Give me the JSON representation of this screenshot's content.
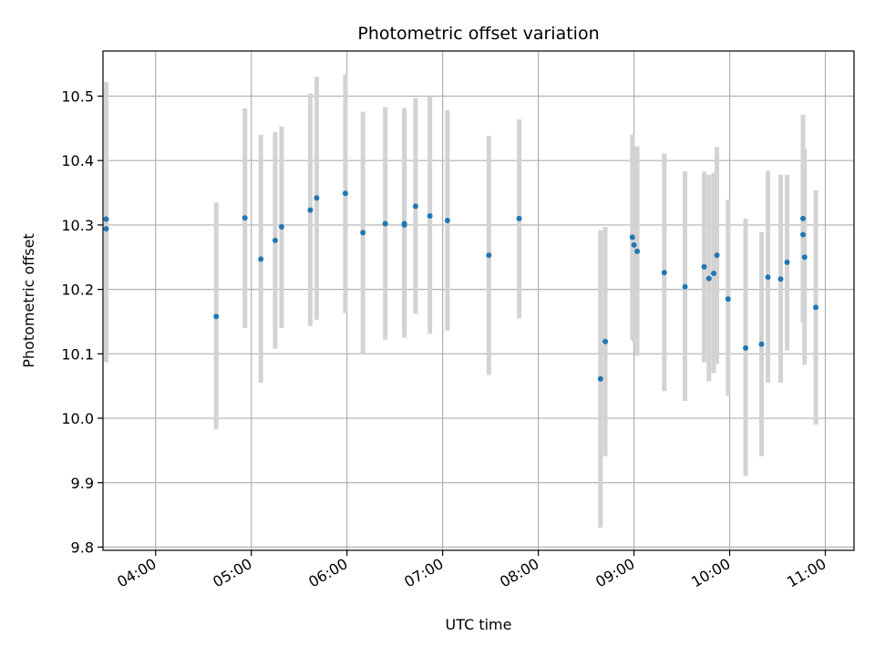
{
  "chart_data": {
    "type": "scatter",
    "title": "Photometric offset variation",
    "xlabel": "UTC time",
    "ylabel": "Photometric offset",
    "xlim": [
      "03:27",
      "11:18"
    ],
    "ylim": [
      9.795,
      10.57
    ],
    "x_ticks": [
      "04:00",
      "05:00",
      "06:00",
      "07:00",
      "08:00",
      "09:00",
      "10:00",
      "11:00"
    ],
    "y_ticks": [
      "9.8",
      "9.9",
      "10.0",
      "10.1",
      "10.2",
      "10.3",
      "10.4",
      "10.5"
    ],
    "grid": true,
    "colors": {
      "marker": "#1f77b4",
      "errorbar": "#d3d3d3",
      "grid": "#b0b0b0"
    },
    "points": [
      {
        "t": "03:29",
        "y": 10.309,
        "lo": 10.095,
        "hi": 10.522
      },
      {
        "t": "03:29",
        "y": 10.294,
        "lo": 10.087,
        "hi": 10.5
      },
      {
        "t": "04:38",
        "y": 10.158,
        "lo": 9.983,
        "hi": 10.335
      },
      {
        "t": "04:56",
        "y": 10.311,
        "lo": 10.14,
        "hi": 10.481
      },
      {
        "t": "05:06",
        "y": 10.247,
        "lo": 10.055,
        "hi": 10.44
      },
      {
        "t": "05:15",
        "y": 10.276,
        "lo": 10.108,
        "hi": 10.444
      },
      {
        "t": "05:19",
        "y": 10.297,
        "lo": 10.14,
        "hi": 10.453
      },
      {
        "t": "05:37",
        "y": 10.323,
        "lo": 10.143,
        "hi": 10.504
      },
      {
        "t": "05:41",
        "y": 10.342,
        "lo": 10.153,
        "hi": 10.53
      },
      {
        "t": "05:59",
        "y": 10.349,
        "lo": 10.163,
        "hi": 10.534
      },
      {
        "t": "06:10",
        "y": 10.288,
        "lo": 10.1,
        "hi": 10.476
      },
      {
        "t": "06:24",
        "y": 10.302,
        "lo": 10.122,
        "hi": 10.483
      },
      {
        "t": "06:36",
        "y": 10.3,
        "lo": 10.125,
        "hi": 10.482
      },
      {
        "t": "06:36",
        "y": 10.302,
        "lo": 10.13,
        "hi": 10.475
      },
      {
        "t": "06:43",
        "y": 10.329,
        "lo": 10.162,
        "hi": 10.497
      },
      {
        "t": "06:52",
        "y": 10.314,
        "lo": 10.131,
        "hi": 10.5
      },
      {
        "t": "07:03",
        "y": 10.307,
        "lo": 10.136,
        "hi": 10.478
      },
      {
        "t": "07:29",
        "y": 10.253,
        "lo": 10.067,
        "hi": 10.438
      },
      {
        "t": "07:48",
        "y": 10.31,
        "lo": 10.155,
        "hi": 10.464
      },
      {
        "t": "08:39",
        "y": 10.061,
        "lo": 9.83,
        "hi": 10.292
      },
      {
        "t": "08:42",
        "y": 10.119,
        "lo": 9.941,
        "hi": 10.297
      },
      {
        "t": "08:59",
        "y": 10.281,
        "lo": 10.122,
        "hi": 10.44
      },
      {
        "t": "09:00",
        "y": 10.269,
        "lo": 10.118,
        "hi": 10.42
      },
      {
        "t": "09:02",
        "y": 10.259,
        "lo": 10.097,
        "hi": 10.422
      },
      {
        "t": "09:19",
        "y": 10.226,
        "lo": 10.042,
        "hi": 10.411
      },
      {
        "t": "09:32",
        "y": 10.204,
        "lo": 10.027,
        "hi": 10.383
      },
      {
        "t": "09:44",
        "y": 10.235,
        "lo": 10.087,
        "hi": 10.383
      },
      {
        "t": "09:47",
        "y": 10.217,
        "lo": 10.057,
        "hi": 10.378
      },
      {
        "t": "09:50",
        "y": 10.225,
        "lo": 10.07,
        "hi": 10.381
      },
      {
        "t": "09:52",
        "y": 10.253,
        "lo": 10.085,
        "hi": 10.421
      },
      {
        "t": "09:59",
        "y": 10.185,
        "lo": 10.035,
        "hi": 10.339
      },
      {
        "t": "10:10",
        "y": 10.109,
        "lo": 9.91,
        "hi": 10.31
      },
      {
        "t": "10:20",
        "y": 10.115,
        "lo": 9.941,
        "hi": 10.289
      },
      {
        "t": "10:24",
        "y": 10.219,
        "lo": 10.055,
        "hi": 10.384
      },
      {
        "t": "10:32",
        "y": 10.216,
        "lo": 10.055,
        "hi": 10.378
      },
      {
        "t": "10:36",
        "y": 10.242,
        "lo": 10.105,
        "hi": 10.378
      },
      {
        "t": "10:46",
        "y": 10.31,
        "lo": 10.148,
        "hi": 10.471
      },
      {
        "t": "10:46",
        "y": 10.285,
        "lo": 10.155,
        "hi": 10.415
      },
      {
        "t": "10:47",
        "y": 10.25,
        "lo": 10.083,
        "hi": 10.418
      },
      {
        "t": "10:54",
        "y": 10.172,
        "lo": 9.99,
        "hi": 10.354
      }
    ]
  }
}
